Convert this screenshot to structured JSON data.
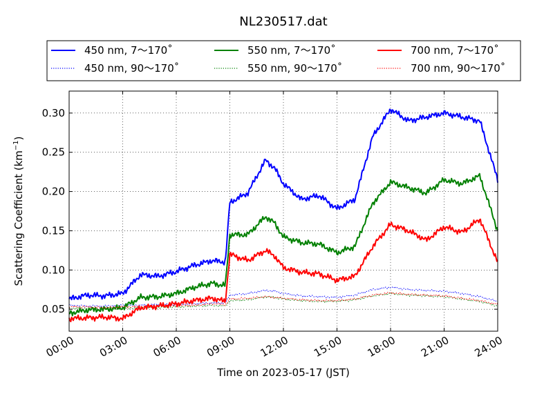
{
  "chart_data": {
    "type": "line",
    "title": "NL230517.dat",
    "xlabel": "Time on 2023-05-17 (JST)",
    "ylabel": {
      "main": "Scattering Coefficient (km",
      "sup": "−1",
      "close": ")"
    },
    "xlim": [
      "2023-05-17 00:00",
      "2023-05-18 00:00"
    ],
    "ylim": [
      0.022,
      0.328
    ],
    "grid": true,
    "legend_placement": "top",
    "x_ticks": [
      "00:00",
      "03:00",
      "06:00",
      "09:00",
      "12:00",
      "15:00",
      "18:00",
      "21:00",
      "24:00"
    ],
    "y_ticks": [
      "0.05",
      "0.10",
      "0.15",
      "0.20",
      "0.25",
      "0.30"
    ],
    "x": [
      "00:00",
      "01:00",
      "02:00",
      "03:00",
      "04:00",
      "05:00",
      "06:00",
      "07:00",
      "08:00",
      "08:45",
      "09:00",
      "10:00",
      "11:00",
      "11:30",
      "12:00",
      "13:00",
      "14:00",
      "15:00",
      "16:00",
      "17:00",
      "18:00",
      "19:00",
      "20:00",
      "21:00",
      "22:00",
      "23:00",
      "24:00"
    ],
    "series": [
      {
        "name": "450 nm, 7～170˚",
        "color": "#0000ff",
        "style": "solid",
        "values": [
          0.063,
          0.068,
          0.067,
          0.07,
          0.094,
          0.092,
          0.098,
          0.106,
          0.112,
          0.11,
          0.186,
          0.198,
          0.24,
          0.23,
          0.21,
          0.19,
          0.195,
          0.178,
          0.19,
          0.27,
          0.305,
          0.29,
          0.295,
          0.3,
          0.295,
          0.29,
          0.215
        ]
      },
      {
        "name": "450 nm, 90～170˚",
        "color": "#0000ff",
        "style": "dotted",
        "values": [
          0.055,
          0.054,
          0.054,
          0.055,
          0.055,
          0.056,
          0.056,
          0.057,
          0.058,
          0.058,
          0.068,
          0.07,
          0.074,
          0.073,
          0.07,
          0.067,
          0.066,
          0.065,
          0.068,
          0.075,
          0.078,
          0.075,
          0.074,
          0.073,
          0.07,
          0.066,
          0.06
        ]
      },
      {
        "name": "550 nm, 7～170˚",
        "color": "#008000",
        "style": "solid",
        "values": [
          0.045,
          0.049,
          0.05,
          0.052,
          0.065,
          0.066,
          0.07,
          0.078,
          0.083,
          0.08,
          0.145,
          0.145,
          0.168,
          0.16,
          0.142,
          0.135,
          0.133,
          0.122,
          0.13,
          0.185,
          0.212,
          0.205,
          0.198,
          0.215,
          0.21,
          0.22,
          0.15
        ]
      },
      {
        "name": "550 nm, 90～170˚",
        "color": "#008000",
        "style": "dotted",
        "values": [
          0.051,
          0.051,
          0.05,
          0.051,
          0.052,
          0.052,
          0.053,
          0.054,
          0.055,
          0.054,
          0.061,
          0.062,
          0.066,
          0.065,
          0.063,
          0.061,
          0.06,
          0.06,
          0.062,
          0.067,
          0.07,
          0.068,
          0.067,
          0.066,
          0.063,
          0.06,
          0.054
        ]
      },
      {
        "name": "700 nm, 7～170˚",
        "color": "#ff0000",
        "style": "solid",
        "values": [
          0.038,
          0.039,
          0.04,
          0.038,
          0.052,
          0.054,
          0.057,
          0.061,
          0.064,
          0.06,
          0.12,
          0.112,
          0.125,
          0.118,
          0.103,
          0.097,
          0.095,
          0.087,
          0.092,
          0.13,
          0.158,
          0.15,
          0.138,
          0.155,
          0.148,
          0.165,
          0.11
        ]
      },
      {
        "name": "700 nm, 90～170˚",
        "color": "#ff0000",
        "style": "dotted",
        "values": [
          0.053,
          0.053,
          0.052,
          0.053,
          0.053,
          0.054,
          0.055,
          0.055,
          0.057,
          0.056,
          0.063,
          0.064,
          0.066,
          0.065,
          0.064,
          0.062,
          0.061,
          0.061,
          0.063,
          0.068,
          0.071,
          0.069,
          0.068,
          0.067,
          0.064,
          0.061,
          0.056
        ]
      }
    ]
  }
}
